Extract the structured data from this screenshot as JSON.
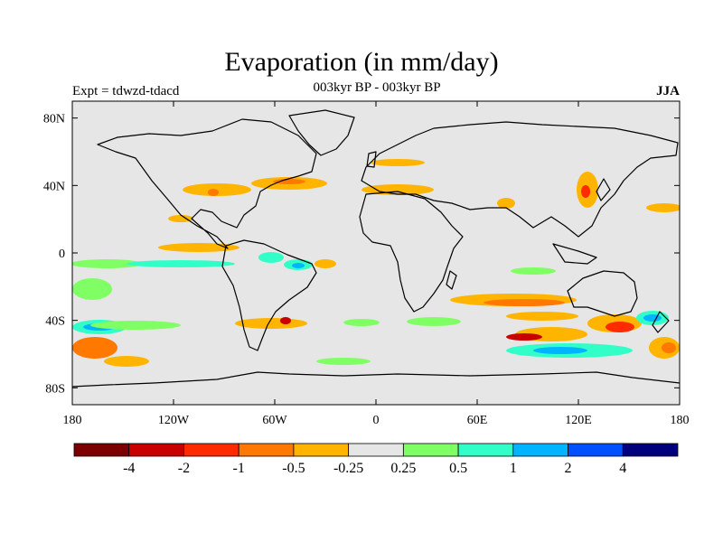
{
  "figure": {
    "title": "Evaporation (in mm/day)",
    "subtitle": "003kyr BP - 003kyr BP",
    "left_label": "Expt = tdwzd-tdacd",
    "right_label": "JJA"
  },
  "map_axes": {
    "x_ticks": [
      {
        "value": -180,
        "label": "180"
      },
      {
        "value": -120,
        "label": "120W"
      },
      {
        "value": -60,
        "label": "60W"
      },
      {
        "value": 0,
        "label": "0"
      },
      {
        "value": 60,
        "label": "60E"
      },
      {
        "value": 120,
        "label": "120E"
      },
      {
        "value": 180,
        "label": "180"
      }
    ],
    "y_ticks": [
      {
        "value": 80,
        "label": "80N"
      },
      {
        "value": 40,
        "label": "40N"
      },
      {
        "value": 0,
        "label": "0"
      },
      {
        "value": -40,
        "label": "40S"
      },
      {
        "value": -80,
        "label": "80S"
      }
    ],
    "lon_range": [
      -180,
      180
    ],
    "lat_range": [
      -90,
      90
    ],
    "background_color": "#e6e6e6"
  },
  "colorbar": {
    "colors": [
      "#7d0000",
      "#c80000",
      "#ff2a00",
      "#ff7800",
      "#ffb400",
      "#e6e6e6",
      "#80ff64",
      "#32ffc8",
      "#00b4ff",
      "#0050ff",
      "#00007d"
    ],
    "labels": [
      "-4",
      "-2",
      "-1",
      "-0.5",
      "-0.25",
      "0.25",
      "0.5",
      "1",
      "2",
      "4"
    ]
  }
}
